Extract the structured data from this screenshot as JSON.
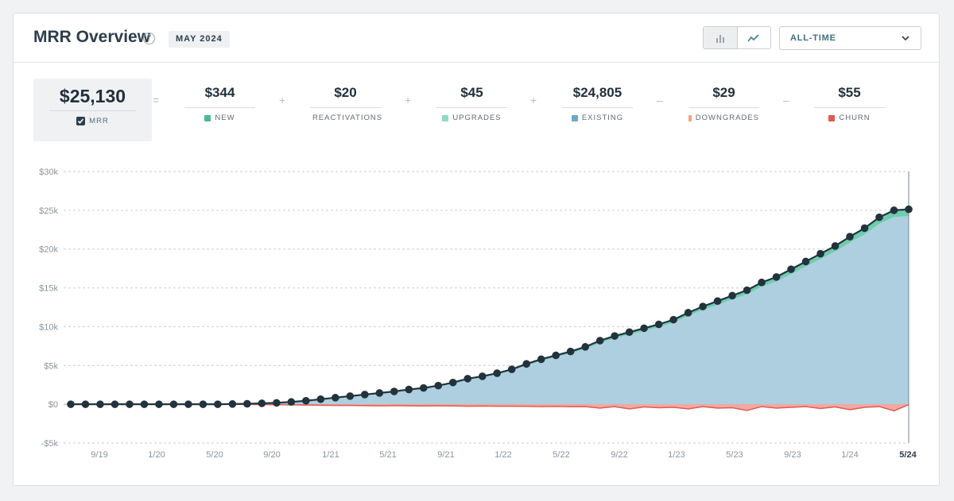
{
  "header": {
    "title": "MRR Overview",
    "help_glyph": "?",
    "period": "MAY 2024",
    "range": "ALL-TIME"
  },
  "toggle": {
    "bar_icon": "bar-chart-icon",
    "line_icon": "line-chart-icon"
  },
  "summary": {
    "mrr": {
      "value": "$25,130",
      "label": "MRR"
    },
    "operators": [
      "=",
      "+",
      "+",
      "+",
      "–",
      "–"
    ],
    "items": [
      {
        "value": "$344",
        "label": "NEW",
        "color": "#4db894"
      },
      {
        "value": "$20",
        "label": "REACTIVATIONS",
        "color": "#4bbf9c"
      },
      {
        "value": "$45",
        "label": "UPGRADES",
        "color": "#8fdcc0"
      },
      {
        "value": "$24,805",
        "label": "EXISTING",
        "color": "#6fa8c8"
      },
      {
        "value": "$29",
        "label": "DOWNGRADES",
        "color": "#f3a27f"
      },
      {
        "value": "$55",
        "label": "CHURN",
        "color": "#e05a50"
      }
    ]
  },
  "chart_data": {
    "type": "area",
    "ylim": [
      -5000,
      30000
    ],
    "y_ticks": [
      30000,
      25000,
      20000,
      15000,
      10000,
      5000,
      0,
      -5000
    ],
    "y_tick_labels": [
      "$30k",
      "$25k",
      "$20k",
      "$15k",
      "$10k",
      "$5k",
      "$0",
      "-$5k"
    ],
    "x_tick_labels": [
      "9/19",
      "1/20",
      "5/20",
      "9/20",
      "1/21",
      "5/21",
      "9/21",
      "1/22",
      "5/22",
      "9/22",
      "1/23",
      "5/23",
      "9/23",
      "1/24",
      "5/24"
    ],
    "grid": true,
    "series": [
      {
        "name": "MRR",
        "color": "#22333d",
        "values": [
          0,
          0,
          0,
          0,
          0,
          0,
          0,
          0,
          0,
          0,
          0,
          30,
          60,
          120,
          180,
          300,
          450,
          650,
          850,
          1050,
          1250,
          1450,
          1650,
          1900,
          2100,
          2400,
          2800,
          3300,
          3600,
          4000,
          4500,
          5200,
          5800,
          6300,
          6800,
          7400,
          8200,
          8800,
          9300,
          9800,
          10300,
          10900,
          11800,
          12600,
          13300,
          14000,
          14700,
          15700,
          16400,
          17400,
          18400,
          19400,
          20400,
          21600,
          22700,
          24100,
          25000,
          25130
        ]
      },
      {
        "name": "CHURN",
        "color": "#e05a50",
        "values": [
          0,
          0,
          0,
          0,
          0,
          0,
          0,
          0,
          0,
          0,
          0,
          0,
          -20,
          -40,
          -60,
          -80,
          -100,
          -120,
          -150,
          -150,
          -180,
          -200,
          -180,
          -200,
          -220,
          -200,
          -220,
          -250,
          -230,
          -260,
          -250,
          -270,
          -300,
          -280,
          -320,
          -300,
          -500,
          -300,
          -600,
          -350,
          -450,
          -400,
          -600,
          -300,
          -500,
          -450,
          -800,
          -300,
          -500,
          -400,
          -300,
          -550,
          -350,
          -700,
          -400,
          -300,
          -850,
          -55
        ]
      }
    ]
  }
}
